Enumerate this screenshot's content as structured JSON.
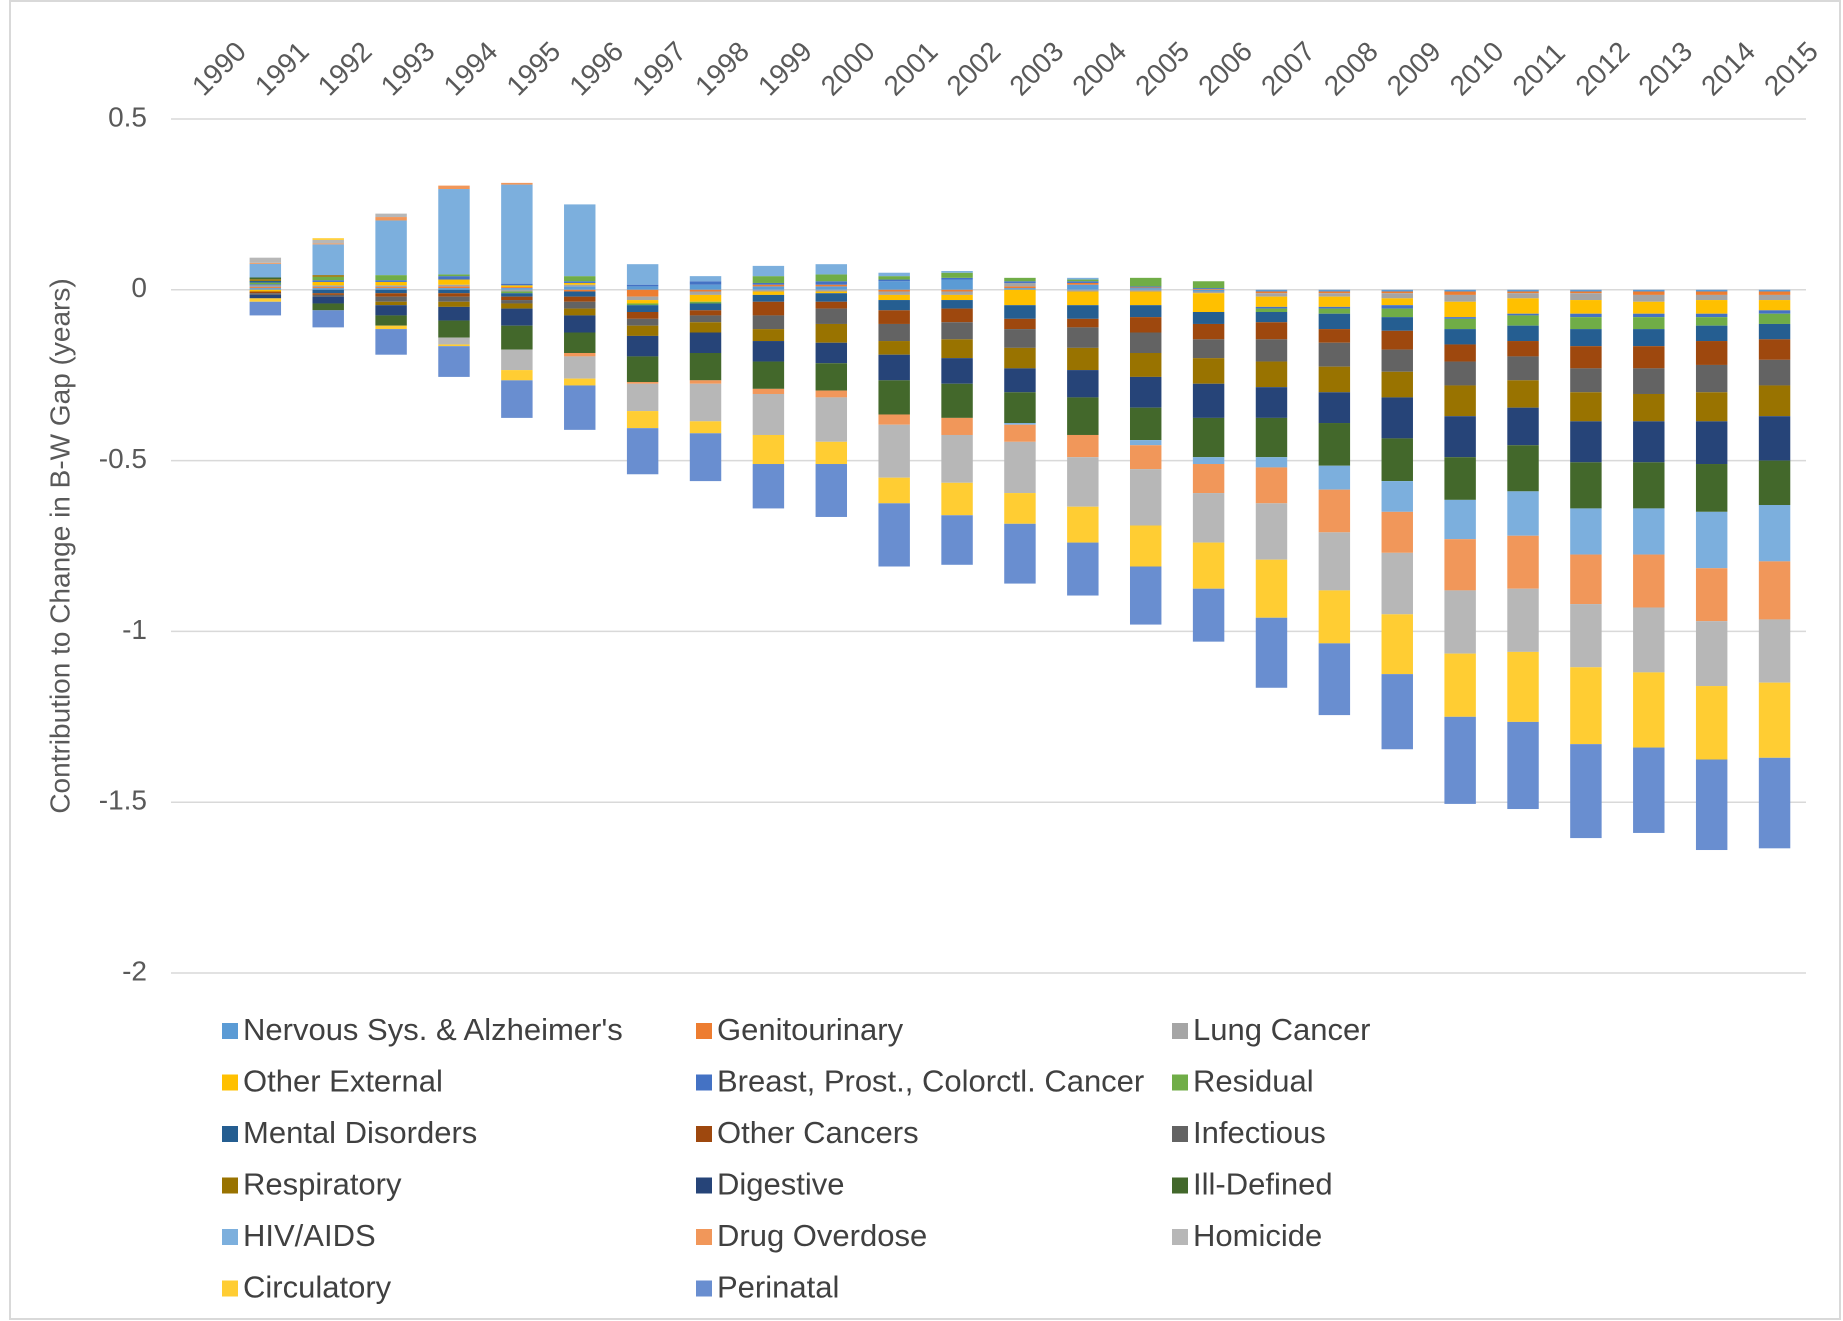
{
  "chart_data": {
    "type": "bar",
    "stacked": true,
    "ylabel": "Contribution to Change in B-W Gap (years)",
    "categories": [
      "1990",
      "1991",
      "1992",
      "1993",
      "1994",
      "1995",
      "1996",
      "1997",
      "1998",
      "1999",
      "2000",
      "2001",
      "2002",
      "2003",
      "2004",
      "2005",
      "2006",
      "2007",
      "2008",
      "2009",
      "2010",
      "2011",
      "2012",
      "2013",
      "2014",
      "2015"
    ],
    "ylim": [
      -2,
      0.5
    ],
    "yticks": [
      0.5,
      0,
      -0.5,
      -1,
      -1.5,
      -2
    ],
    "grid": true,
    "legend": "bottom",
    "series": [
      {
        "name": "Nervous Sys. & Alzheimer's",
        "color": "#5b9bd5",
        "values": [
          0,
          0.005,
          0.005,
          0.005,
          0.005,
          0.005,
          0.01,
          0.01,
          0.015,
          0.01,
          0.01,
          0.025,
          0.03,
          0.005,
          0.015,
          0.005,
          -0.005,
          -0.005,
          -0.005,
          -0.005,
          -0.005,
          -0.005,
          -0.005,
          -0.005,
          -0.005,
          -0.005
        ]
      },
      {
        "name": "Genitourinary",
        "color": "#ed7d31",
        "values": [
          0,
          0.003,
          0.003,
          0.003,
          0.005,
          0.003,
          -0.005,
          -0.02,
          -0.005,
          0.005,
          0.005,
          -0.005,
          -0.005,
          0.005,
          0.005,
          0.002,
          0.002,
          -0.005,
          -0.005,
          -0.005,
          -0.01,
          -0.005,
          -0.005,
          -0.01,
          -0.01,
          -0.01
        ]
      },
      {
        "name": "Lung Cancer",
        "color": "#a5a5a5",
        "values": [
          0,
          0.005,
          0.005,
          0.005,
          0.005,
          -0.005,
          0.005,
          -0.01,
          -0.01,
          -0.005,
          -0.005,
          -0.01,
          -0.01,
          0.01,
          -0.005,
          -0.005,
          -0.005,
          -0.01,
          -0.01,
          -0.015,
          -0.02,
          -0.015,
          -0.02,
          -0.02,
          -0.015,
          -0.015
        ]
      },
      {
        "name": "Other External",
        "color": "#ffc000",
        "values": [
          0,
          -0.005,
          0.01,
          0.01,
          0.015,
          0.005,
          0.005,
          -0.01,
          -0.02,
          -0.01,
          -0.005,
          -0.015,
          -0.015,
          -0.045,
          -0.04,
          -0.04,
          -0.055,
          -0.03,
          -0.03,
          -0.02,
          -0.045,
          -0.045,
          -0.04,
          -0.035,
          -0.04,
          -0.03
        ]
      },
      {
        "name": "Breast, Prost., Colorctl. Cancer",
        "color": "#4472c4",
        "values": [
          0,
          0.003,
          0.005,
          0.005,
          0.01,
          0.005,
          0.005,
          0.005,
          0.01,
          0.005,
          0.01,
          0.005,
          0.005,
          0.005,
          0.005,
          0.003,
          0.003,
          -0.005,
          -0.005,
          -0.01,
          -0.005,
          -0.005,
          -0.01,
          -0.01,
          -0.01,
          -0.01
        ]
      },
      {
        "name": "Residual",
        "color": "#70ad47",
        "values": [
          0,
          0.005,
          0.01,
          0.015,
          0.005,
          -0.005,
          0.015,
          -0.005,
          -0.005,
          0.02,
          0.02,
          0.01,
          0.015,
          0.01,
          0.005,
          0.025,
          0.02,
          -0.01,
          -0.015,
          -0.025,
          -0.03,
          -0.03,
          -0.035,
          -0.035,
          -0.025,
          -0.03
        ]
      },
      {
        "name": "Mental Disorders",
        "color": "#255e91",
        "values": [
          0,
          0.005,
          -0.01,
          -0.01,
          -0.01,
          -0.01,
          -0.015,
          -0.02,
          -0.02,
          -0.02,
          -0.025,
          -0.03,
          -0.025,
          -0.04,
          -0.04,
          -0.035,
          -0.035,
          -0.03,
          -0.045,
          -0.04,
          -0.045,
          -0.045,
          -0.05,
          -0.05,
          -0.045,
          -0.045
        ]
      },
      {
        "name": "Other Cancers",
        "color": "#9e480e",
        "values": [
          0,
          -0.005,
          -0.005,
          -0.01,
          -0.01,
          -0.01,
          -0.015,
          -0.02,
          -0.015,
          -0.04,
          -0.02,
          -0.04,
          -0.04,
          -0.03,
          -0.025,
          -0.045,
          -0.045,
          -0.05,
          -0.04,
          -0.055,
          -0.05,
          -0.045,
          -0.065,
          -0.065,
          -0.07,
          -0.06
        ]
      },
      {
        "name": "Infectious",
        "color": "#636363",
        "values": [
          0,
          -0.005,
          -0.005,
          -0.015,
          -0.015,
          -0.01,
          -0.02,
          -0.02,
          -0.02,
          -0.04,
          -0.045,
          -0.05,
          -0.05,
          -0.055,
          -0.06,
          -0.06,
          -0.055,
          -0.065,
          -0.07,
          -0.065,
          -0.07,
          -0.07,
          -0.07,
          -0.075,
          -0.08,
          -0.075
        ]
      },
      {
        "name": "Respiratory",
        "color": "#997300",
        "values": [
          0,
          0.005,
          0.005,
          -0.01,
          -0.015,
          -0.015,
          -0.02,
          -0.03,
          -0.03,
          -0.035,
          -0.055,
          -0.04,
          -0.055,
          -0.06,
          -0.065,
          -0.07,
          -0.075,
          -0.075,
          -0.075,
          -0.075,
          -0.09,
          -0.08,
          -0.085,
          -0.08,
          -0.085,
          -0.09
        ]
      },
      {
        "name": "Digestive",
        "color": "#264478",
        "values": [
          0,
          -0.01,
          -0.02,
          -0.03,
          -0.04,
          -0.05,
          -0.05,
          -0.06,
          -0.06,
          -0.06,
          -0.06,
          -0.075,
          -0.075,
          -0.07,
          -0.08,
          -0.09,
          -0.1,
          -0.09,
          -0.09,
          -0.12,
          -0.12,
          -0.11,
          -0.12,
          -0.12,
          -0.125,
          -0.13
        ]
      },
      {
        "name": "Ill-Defined",
        "color": "#43682b",
        "values": [
          0,
          0.005,
          -0.02,
          -0.03,
          -0.05,
          -0.07,
          -0.06,
          -0.075,
          -0.08,
          -0.08,
          -0.08,
          -0.1,
          -0.1,
          -0.09,
          -0.11,
          -0.095,
          -0.115,
          -0.115,
          -0.125,
          -0.125,
          -0.125,
          -0.135,
          -0.135,
          -0.135,
          -0.14,
          -0.13
        ]
      },
      {
        "name": "HIV/AIDS",
        "color": "#7cafdd",
        "values": [
          0,
          0.04,
          0.09,
          0.16,
          0.25,
          0.29,
          0.21,
          0.06,
          0.015,
          0.03,
          0.03,
          0.01,
          0.005,
          -0.005,
          0.005,
          -0.015,
          -0.02,
          -0.03,
          -0.07,
          -0.09,
          -0.115,
          -0.13,
          -0.135,
          -0.135,
          -0.165,
          -0.165
        ]
      },
      {
        "name": "Drug Overdose",
        "color": "#f1975a",
        "values": [
          0,
          0.003,
          0.003,
          0.01,
          0.01,
          0.005,
          -0.01,
          -0.005,
          -0.01,
          -0.015,
          -0.02,
          -0.03,
          -0.05,
          -0.05,
          -0.065,
          -0.07,
          -0.085,
          -0.105,
          -0.125,
          -0.12,
          -0.15,
          -0.155,
          -0.145,
          -0.155,
          -0.155,
          -0.17
        ]
      },
      {
        "name": "Homicide",
        "color": "#b7b7b7",
        "values": [
          0,
          0.015,
          0.01,
          0.01,
          -0.02,
          -0.06,
          -0.065,
          -0.08,
          -0.11,
          -0.12,
          -0.13,
          -0.155,
          -0.14,
          -0.15,
          -0.145,
          -0.165,
          -0.145,
          -0.165,
          -0.17,
          -0.18,
          -0.185,
          -0.185,
          -0.185,
          -0.19,
          -0.19,
          -0.185
        ]
      },
      {
        "name": "Circulatory",
        "color": "#ffcd33",
        "values": [
          0,
          -0.01,
          0.005,
          -0.01,
          -0.005,
          -0.03,
          -0.02,
          -0.05,
          -0.035,
          -0.085,
          -0.065,
          -0.075,
          -0.095,
          -0.09,
          -0.105,
          -0.12,
          -0.135,
          -0.17,
          -0.155,
          -0.175,
          -0.185,
          -0.205,
          -0.225,
          -0.22,
          -0.215,
          -0.22
        ]
      },
      {
        "name": "Perinatal",
        "color": "#698ed0",
        "values": [
          0,
          -0.04,
          -0.05,
          -0.075,
          -0.09,
          -0.11,
          -0.13,
          -0.135,
          -0.14,
          -0.13,
          -0.155,
          -0.185,
          -0.145,
          -0.175,
          -0.155,
          -0.17,
          -0.155,
          -0.205,
          -0.21,
          -0.22,
          -0.255,
          -0.255,
          -0.275,
          -0.25,
          -0.265,
          -0.265
        ]
      }
    ]
  }
}
